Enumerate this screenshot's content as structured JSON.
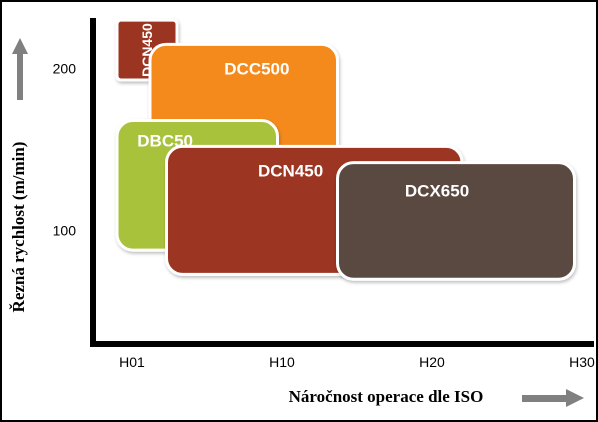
{
  "chart_data": {
    "type": "bar",
    "xlabel": "Náročnost operace dle ISO",
    "ylabel": "Řezná rychlost (m/min)",
    "x_ticks": [
      "H01",
      "H10",
      "H20",
      "H30"
    ],
    "y_ticks": [
      100,
      200
    ],
    "xlim": [
      -0.26,
      3.0
    ],
    "ylim": [
      30,
      235
    ],
    "grid": false,
    "colors": {
      "DCN450_tall": "#9b3521",
      "DCC500": "#f48a1c",
      "DBC50": "#a9c23b",
      "DCN450": "#9c3522",
      "DCX650": "#5a4a40",
      "axis": "#000000",
      "arrow": "#808080"
    },
    "regions": [
      {
        "name": "DCN450",
        "vertical_label": true,
        "color": "DCN450_tall",
        "x_range": [
          -0.1,
          0.3
        ],
        "y_range": [
          193,
          230
        ]
      },
      {
        "name": "DCC500",
        "color": "DCC500",
        "x_range": [
          0.12,
          1.37
        ],
        "y_range": [
          112,
          215
        ]
      },
      {
        "name": "DBC50",
        "color": "DBC50",
        "x_range": [
          -0.1,
          0.97
        ],
        "y_range": [
          88,
          168
        ]
      },
      {
        "name": "DCN450",
        "color": "DCN450",
        "x_range": [
          0.23,
          2.2
        ],
        "y_range": [
          73,
          152
        ]
      },
      {
        "name": "DCX650",
        "color": "DCX650",
        "x_range": [
          1.37,
          2.95
        ],
        "y_range": [
          70,
          142
        ]
      }
    ]
  }
}
